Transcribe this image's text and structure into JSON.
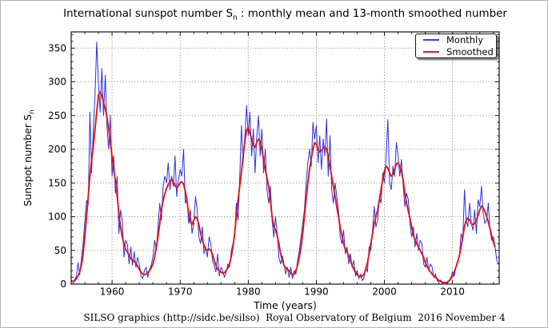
{
  "figure": {
    "title": {
      "part1": "International sunspot number S",
      "subscript": "n",
      "part2": " : monthly mean and 13-month smoothed number"
    },
    "footer": "SILSO graphics (http://sidc.be/silso)  Royal Observatory of Belgium  2016 November 4"
  },
  "chart_data": {
    "type": "line",
    "title": "International sunspot number Sₙ : monthly mean and 13-month smoothed number",
    "xlabel": "Time (years)",
    "ylabel": "Sunspot number Sₙ",
    "ylabel_part1": "Sunspot number S",
    "ylabel_sub": "n",
    "xlim": [
      1954,
      2016.85
    ],
    "ylim": [
      0,
      374
    ],
    "x_ticks": [
      1960,
      1970,
      1980,
      1990,
      2000,
      2010
    ],
    "y_ticks": [
      0,
      50,
      100,
      150,
      200,
      250,
      300,
      350
    ],
    "x_minor_step": 2,
    "y_minor_step": 10,
    "grid": "dotted",
    "background_color": "#ffffff",
    "legend": {
      "position": "upper-right",
      "items": [
        {
          "label": "Monthly",
          "color": "#3a3ae0"
        },
        {
          "label": "Smoothed",
          "color": "#e81717"
        }
      ]
    },
    "series": [
      {
        "name": "Monthly",
        "color": "#2f2fdd",
        "width": 1,
        "x_start": 1954.0,
        "x_step": 0.25,
        "values": [
          1,
          0,
          7,
          11,
          32,
          14,
          38,
          60,
          92,
          124,
          118,
          255,
          165,
          230,
          280,
          359,
          300,
          255,
          320,
          250,
          310,
          235,
          200,
          250,
          160,
          190,
          135,
          160,
          75,
          110,
          95,
          40,
          65,
          60,
          30,
          55,
          28,
          48,
          25,
          40,
          30,
          12,
          8,
          20,
          25,
          10,
          22,
          28,
          40,
          65,
          50,
          85,
          120,
          95,
          145,
          160,
          150,
          180,
          140,
          160,
          145,
          190,
          130,
          155,
          170,
          160,
          200,
          120,
          130,
          90,
          110,
          75,
          90,
          130,
          110,
          70,
          60,
          85,
          45,
          55,
          40,
          70,
          60,
          35,
          28,
          18,
          45,
          12,
          25,
          20,
          10,
          18,
          30,
          25,
          48,
          60,
          70,
          120,
          95,
          160,
          235,
          180,
          220,
          265,
          220,
          255,
          190,
          230,
          165,
          220,
          250,
          190,
          230,
          165,
          200,
          140,
          120,
          145,
          95,
          70,
          100,
          75,
          40,
          30,
          42,
          30,
          15,
          25,
          10,
          25,
          8,
          20,
          15,
          35,
          50,
          70,
          90,
          110,
          150,
          180,
          200,
          175,
          240,
          215,
          235,
          180,
          220,
          170,
          215,
          190,
          245,
          160,
          220,
          140,
          120,
          150,
          130,
          110,
          70,
          60,
          80,
          45,
          55,
          30,
          45,
          25,
          35,
          12,
          20,
          8,
          15,
          5,
          10,
          25,
          18,
          55,
          50,
          80,
          115,
          85,
          95,
          130,
          120,
          165,
          150,
          190,
          244,
          150,
          140,
          175,
          160,
          210,
          190,
          160,
          185,
          145,
          115,
          135,
          125,
          90,
          70,
          85,
          55,
          75,
          50,
          65,
          60,
          30,
          25,
          40,
          20,
          30,
          25,
          10,
          15,
          5,
          4,
          6,
          1,
          3,
          2,
          1,
          5,
          10,
          18,
          12,
          25,
          35,
          40,
          75,
          65,
          140,
          95,
          85,
          120,
          90,
          80,
          110,
          75,
          125,
          115,
          145,
          105,
          90,
          95,
          120,
          80,
          65,
          70,
          55,
          35,
          30
        ]
      },
      {
        "name": "Smoothed",
        "color": "#e01616",
        "width": 1.9,
        "x_start": 1954.0,
        "x_step": 0.25,
        "values": [
          5,
          4,
          5,
          8,
          12,
          18,
          28,
          45,
          70,
          100,
          130,
          160,
          185,
          205,
          230,
          255,
          280,
          285,
          280,
          270,
          260,
          248,
          230,
          210,
          190,
          170,
          152,
          130,
          105,
          85,
          70,
          60,
          52,
          48,
          42,
          38,
          36,
          34,
          31,
          27,
          22,
          18,
          15,
          14,
          15,
          17,
          20,
          24,
          30,
          40,
          55,
          70,
          90,
          110,
          124,
          134,
          142,
          148,
          152,
          156,
          152,
          146,
          143,
          146,
          150,
          152,
          148,
          138,
          124,
          105,
          92,
          88,
          95,
          100,
          97,
          88,
          76,
          65,
          58,
          52,
          50,
          52,
          50,
          44,
          35,
          28,
          22,
          20,
          18,
          16,
          17,
          20,
          24,
          30,
          40,
          55,
          75,
          100,
          125,
          146,
          166,
          190,
          212,
          228,
          233,
          224,
          214,
          206,
          203,
          210,
          215,
          212,
          200,
          185,
          170,
          158,
          144,
          124,
          100,
          86,
          80,
          72,
          60,
          45,
          35,
          28,
          24,
          22,
          20,
          16,
          14,
          15,
          20,
          28,
          40,
          55,
          75,
          100,
          126,
          150,
          170,
          186,
          200,
          210,
          208,
          200,
          196,
          198,
          202,
          204,
          200,
          190,
          175,
          160,
          145,
          130,
          114,
          100,
          85,
          72,
          60,
          52,
          48,
          42,
          35,
          28,
          22,
          18,
          14,
          12,
          11,
          12,
          15,
          22,
          32,
          45,
          60,
          75,
          90,
          100,
          110,
          125,
          140,
          155,
          168,
          175,
          172,
          165,
          160,
          163,
          170,
          178,
          180,
          175,
          167,
          154,
          135,
          120,
          108,
          97,
          85,
          73,
          65,
          60,
          55,
          50,
          45,
          40,
          32,
          26,
          22,
          18,
          15,
          12,
          10,
          8,
          5,
          4,
          3,
          2.5,
          2,
          3,
          5,
          8,
          12,
          18,
          25,
          33,
          42,
          55,
          70,
          85,
          95,
          98,
          95,
          90,
          88,
          90,
          95,
          102,
          110,
          116,
          113,
          108,
          100,
          92,
          82,
          72,
          62,
          55
        ]
      }
    ]
  }
}
